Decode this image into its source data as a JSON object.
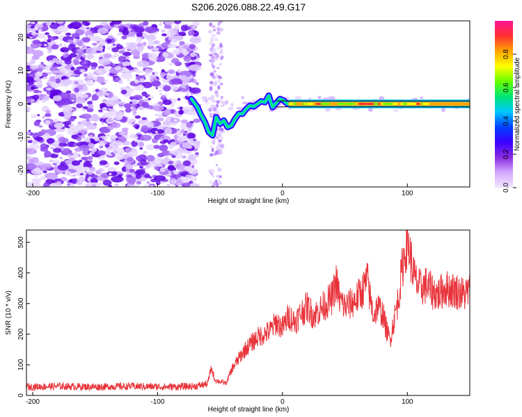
{
  "title": "S206.2026.088.22.49.G17",
  "chart_data": [
    {
      "type": "heatmap",
      "name": "spectrogram",
      "xlabel": "Height of straight line (km)",
      "ylabel": "Frequency (Hz)",
      "xlim": [
        -205,
        150
      ],
      "ylim": [
        -25,
        25
      ],
      "xticks": [
        -200,
        -100,
        0,
        100
      ],
      "yticks": [
        20,
        10,
        0,
        -10,
        -20
      ],
      "colorbar": {
        "label": "Normalized spectral amplitude",
        "range": [
          0.0,
          1.0
        ],
        "ticks": [
          0.0,
          0.2,
          0.4,
          0.6,
          0.8
        ],
        "tick_labels": [
          "0.0",
          "0.2",
          "0.4",
          "0.6",
          "0.8"
        ],
        "colors": [
          "#f2e6ff",
          "#d4a8ff",
          "#8a2be2",
          "#3a00ff",
          "#0040ff",
          "#00c8ff",
          "#00e676",
          "#66ff00",
          "#ffff00",
          "#ffa500",
          "#ff3030",
          "#ff1493"
        ]
      },
      "ridge": {
        "x": [
          -73,
          -68,
          -65,
          -62,
          -59,
          -56,
          -53,
          -50,
          -47,
          -44,
          -41,
          -38,
          -35,
          -32,
          -29,
          -26,
          -23,
          -20,
          -17,
          -14,
          -11,
          -8,
          -5,
          -2,
          1,
          4,
          8,
          20,
          40,
          60,
          80,
          100,
          120,
          150
        ],
        "y": [
          1.5,
          -1,
          -3.5,
          -5.5,
          -8.5,
          -9.5,
          -4,
          -6,
          -5,
          -7,
          -6.5,
          -4.5,
          -3,
          -3,
          -1.5,
          -0.5,
          -0.8,
          0,
          0.8,
          0.5,
          2.5,
          -1,
          0.3,
          1.5,
          1,
          0,
          0,
          0,
          0,
          0,
          0,
          0,
          0,
          0
        ]
      }
    },
    {
      "type": "line",
      "name": "snr",
      "xlabel": "Height of straight line (km)",
      "ylabel": "SNR (10 * v/v)",
      "xlim": [
        -205,
        150
      ],
      "ylim": [
        0,
        540
      ],
      "xticks": [
        -200,
        -100,
        0,
        100
      ],
      "yticks": [
        0,
        100,
        200,
        300,
        400,
        500
      ],
      "color": "#e8333a",
      "series": [
        {
          "name": "SNR",
          "x": [
            -205,
            -180,
            -150,
            -120,
            -90,
            -70,
            -60,
            -57,
            -54,
            -50,
            -45,
            -40,
            -35,
            -30,
            -25,
            -20,
            -15,
            -10,
            -5,
            0,
            5,
            10,
            15,
            20,
            25,
            30,
            35,
            40,
            43,
            46,
            50,
            55,
            60,
            65,
            68,
            70,
            73,
            76,
            80,
            83,
            86,
            90,
            93,
            96,
            100,
            103,
            106,
            110,
            115,
            120,
            125,
            130,
            135,
            140,
            145,
            150
          ],
          "y": [
            28,
            30,
            28,
            30,
            28,
            30,
            38,
            90,
            50,
            45,
            40,
            90,
            120,
            150,
            170,
            190,
            200,
            210,
            240,
            220,
            260,
            240,
            270,
            290,
            260,
            280,
            300,
            320,
            370,
            310,
            290,
            300,
            320,
            350,
            380,
            320,
            260,
            290,
            270,
            220,
            180,
            260,
            320,
            420,
            510,
            440,
            380,
            350,
            360,
            340,
            330,
            350,
            345,
            340,
            330,
            340
          ]
        }
      ]
    }
  ]
}
